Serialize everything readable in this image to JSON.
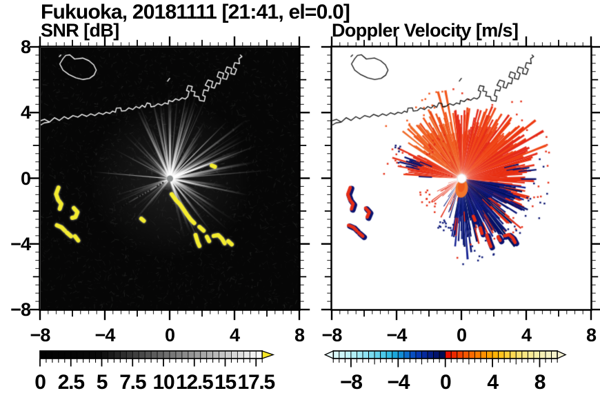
{
  "title": "Fukuoka, 20181111 [21:41, el=0.0]",
  "panels": {
    "snr": {
      "subtitle": "SNR [dB]"
    },
    "doppler": {
      "subtitle": "Doppler Velocity [m/s]"
    }
  },
  "axes": {
    "x": {
      "labels": [
        "−8",
        "−4",
        "0",
        "4",
        "8"
      ],
      "values": [
        -8,
        -4,
        0,
        4,
        8
      ]
    },
    "y": {
      "labels": [
        "8",
        "4",
        "0",
        "−4",
        "−8"
      ],
      "values": [
        8,
        4,
        0,
        -4,
        -8
      ]
    },
    "range": [
      -8,
      8
    ],
    "tick_minor": 0.5,
    "tick_medium": 2,
    "tick_major": 4
  },
  "colorbars": {
    "snr": {
      "labels": [
        "0",
        "2.5",
        "5",
        "7.5",
        "10",
        "12.5",
        "15",
        "17.5"
      ],
      "values": [
        0,
        2.5,
        5,
        7.5,
        10,
        12.5,
        15,
        17.5
      ],
      "min": 0,
      "max": 18,
      "step": 0.5,
      "ramp": "black-to-white",
      "overflow_color": "#f6e627"
    },
    "doppler": {
      "labels": [
        "−8",
        "−4",
        "0",
        "4",
        "8"
      ],
      "values": [
        -8,
        -4,
        0,
        4,
        8
      ],
      "min": -9.5,
      "max": 9.5,
      "step": 0.5,
      "underflow_color": "#eafbfb",
      "overflow_color": "#f6f3d4",
      "stops_neg": [
        [
          -9.5,
          "#defaf9"
        ],
        [
          -8,
          "#baf0f6"
        ],
        [
          -7,
          "#97e6f3"
        ],
        [
          -6,
          "#6fd7ee"
        ],
        [
          -5,
          "#3fc3e6"
        ],
        [
          -4.5,
          "#24b2de"
        ],
        [
          -4,
          "#149cd8"
        ],
        [
          -3.5,
          "#0f7ed0"
        ],
        [
          -3,
          "#0a5cc6"
        ],
        [
          -2.5,
          "#0842ba"
        ],
        [
          -2,
          "#0630a8"
        ],
        [
          -1.5,
          "#052390"
        ],
        [
          -1,
          "#03187a"
        ],
        [
          -0.5,
          "#021060"
        ],
        [
          0,
          "#01094a"
        ]
      ],
      "stops_pos": [
        [
          0,
          "#e60000"
        ],
        [
          0.5,
          "#ea1c00"
        ],
        [
          1,
          "#f03600"
        ],
        [
          1.5,
          "#f44d00"
        ],
        [
          2,
          "#f86000"
        ],
        [
          2.5,
          "#fb7300"
        ],
        [
          3,
          "#fd8600"
        ],
        [
          3.5,
          "#fe9900"
        ],
        [
          4,
          "#ffab00"
        ],
        [
          4.5,
          "#ffbb0e"
        ],
        [
          5,
          "#ffc92b"
        ],
        [
          5.5,
          "#ffd545"
        ],
        [
          6,
          "#fbdd60"
        ],
        [
          6.5,
          "#f8e378"
        ],
        [
          7,
          "#f7e88c"
        ],
        [
          7.5,
          "#f6ec9e"
        ],
        [
          8,
          "#f6efae"
        ],
        [
          8.5,
          "#f6f1bc"
        ],
        [
          9,
          "#f6f2c6"
        ],
        [
          9.5,
          "#f6f3d0"
        ]
      ]
    }
  },
  "chart_data": [
    {
      "type": "heatmap",
      "title": "SNR [dB]",
      "xlim": [
        -8,
        8
      ],
      "ylim": [
        -8,
        8
      ],
      "colorbar": {
        "min": 0,
        "max": 18,
        "ticks": [
          0,
          2.5,
          5,
          7.5,
          10,
          12.5,
          15,
          17.5
        ],
        "units": "dB"
      },
      "radar_center": [
        0,
        0
      ],
      "rays": {
        "sectors": [
          {
            "a0": -162,
            "a1": -118,
            "n": 16,
            "lmin": 40,
            "lmax": 95,
            "amin": 0.1,
            "amax": 0.42
          },
          {
            "a0": -118,
            "a1": -58,
            "n": 30,
            "lmin": 55,
            "lmax": 140,
            "amin": 0.22,
            "amax": 0.78
          },
          {
            "a0": -58,
            "a1": 12,
            "n": 30,
            "lmin": 55,
            "lmax": 145,
            "amin": 0.25,
            "amax": 0.8
          },
          {
            "a0": 12,
            "a1": 78,
            "n": 22,
            "lmin": 42,
            "lmax": 120,
            "amin": 0.15,
            "amax": 0.6
          },
          {
            "a0": 118,
            "a1": 168,
            "n": 16,
            "lmin": 45,
            "lmax": 95,
            "amin": 0.1,
            "amax": 0.34
          }
        ],
        "special": [
          {
            "a": 185,
            "l": 112,
            "alpha": 0.8,
            "w": 1.2
          },
          {
            "a": 150,
            "l": 85,
            "alpha": 0.45,
            "w": 2.0
          }
        ],
        "dark_dotted_ray": {
          "a": 150,
          "l": 82
        }
      },
      "clutter_color": "#f4ec2e",
      "clutter_chains": [
        {
          "pts": [
            [
              -6.9,
              -0.55
            ],
            [
              -7.05,
              -0.95
            ],
            [
              -6.92,
              -1.3
            ],
            [
              -6.72,
              -1.55
            ],
            [
              -6.82,
              -1.85
            ]
          ]
        },
        {
          "pts": [
            [
              -5.95,
              -1.8
            ],
            [
              -5.72,
              -2.05
            ],
            [
              -5.85,
              -2.35
            ],
            [
              -6.05,
              -2.4
            ]
          ]
        },
        {
          "pts": [
            [
              -7.0,
              -2.85
            ],
            [
              -6.7,
              -2.98
            ],
            [
              -6.5,
              -3.18
            ]
          ]
        },
        {
          "pts": [
            [
              -6.38,
              -3.3
            ],
            [
              -6.12,
              -3.52
            ]
          ]
        },
        {
          "pts": [
            [
              -5.88,
              -3.52
            ],
            [
              -5.68,
              -3.78
            ]
          ]
        },
        {
          "pts": [
            [
              0.1,
              -0.95
            ],
            [
              0.35,
              -1.3
            ],
            [
              0.62,
              -1.58
            ],
            [
              0.85,
              -1.9
            ],
            [
              1.05,
              -2.2
            ],
            [
              1.28,
              -2.5
            ],
            [
              1.5,
              -2.72
            ]
          ]
        },
        {
          "pts": [
            [
              1.82,
              -2.95
            ],
            [
              2.08,
              -3.18
            ]
          ]
        },
        {
          "pts": [
            [
              1.58,
              -3.45
            ],
            [
              1.72,
              -3.9
            ],
            [
              1.82,
              -4.12
            ]
          ]
        },
        {
          "pts": [
            [
              2.28,
              -3.55
            ],
            [
              2.42,
              -3.82
            ]
          ]
        },
        {
          "pts": [
            [
              2.7,
              -3.5
            ],
            [
              2.98,
              -3.45
            ],
            [
              3.22,
              -3.68
            ],
            [
              3.38,
              -3.95
            ]
          ]
        },
        {
          "pts": [
            [
              3.6,
              -3.82
            ],
            [
              3.82,
              -4.02
            ]
          ]
        },
        {
          "pts": [
            [
              -1.78,
              -2.45
            ],
            [
              -1.62,
              -2.58
            ]
          ]
        },
        {
          "pts": [
            [
              2.58,
              0.8
            ],
            [
              2.78,
              0.72
            ]
          ]
        }
      ]
    },
    {
      "type": "heatmap",
      "title": "Doppler Velocity [m/s]",
      "xlim": [
        -8,
        8
      ],
      "ylim": [
        -8,
        8
      ],
      "colorbar": {
        "min": -9.5,
        "max": 9.5,
        "ticks": [
          -8,
          -4,
          0,
          4,
          8
        ],
        "units": "m/s"
      },
      "radar_center": [
        0,
        0
      ],
      "fans": [
        {
          "a0": -148,
          "a1": -96,
          "step": 0.8,
          "lmin": 50,
          "lmax": 112,
          "skip": 0.07,
          "colors": [
            "#f2571c",
            "#ee6124",
            "#ea4617",
            "#f06b28"
          ]
        },
        {
          "a0": -96,
          "a1": -18,
          "step": 0.8,
          "lmin": 62,
          "lmax": 118,
          "skip": 0.03,
          "colors": [
            "#e63118",
            "#ee3b12",
            "#e52a1a",
            "#f04818"
          ]
        },
        {
          "a0": -18,
          "a1": 30,
          "step": 0.8,
          "lmin": 45,
          "lmax": 108,
          "skip": 0.1,
          "colors": [
            "#e63118",
            "#e92f10"
          ],
          "fringe": {
            "color": "#0a1470",
            "p": 0.14
          }
        },
        {
          "a0": 30,
          "a1": 74,
          "step": 1.0,
          "lmin": 22,
          "lmax": 96,
          "skip": 0.3,
          "colors": [
            "#e63118"
          ],
          "fringe": {
            "color": "#0a1470",
            "p": 0.22
          }
        },
        {
          "a0": 8,
          "a1": 100,
          "step": 0.8,
          "lmin": 48,
          "lmax": 100,
          "skip": 0.05,
          "colors": [
            "#0b1878",
            "#051068",
            "#152293",
            "#001058"
          ],
          "fringe": {
            "color": "#e52d17",
            "p": 0.1
          }
        },
        {
          "a0": 100,
          "a1": 128,
          "step": 1.2,
          "lmin": 22,
          "lmax": 66,
          "skip": 0.4,
          "colors": [
            "#0b1878",
            "#e63118"
          ]
        },
        {
          "a0": 130,
          "a1": 165,
          "step": 1.5,
          "lmin": 18,
          "lmax": 55,
          "skip": 0.55,
          "colors": [
            "#e63118"
          ]
        },
        {
          "a0": 183,
          "a1": 209,
          "step": 0.8,
          "lmin": 45,
          "lmax": 95,
          "skip": 0.1,
          "colors": [
            "#e63118",
            "#ee3f14"
          ],
          "fringe": {
            "color": "#0a1470",
            "p": 0.15
          }
        },
        {
          "a0": 212,
          "a1": 248,
          "step": 1.4,
          "lmin": 20,
          "lmax": 58,
          "skip": 0.4,
          "colors": [
            "#e63118"
          ]
        }
      ],
      "orange_patch": {
        "center": [
          0.0,
          -0.62
        ],
        "color": "#f2752c"
      },
      "dotted_ray": {
        "a": 196,
        "l": 60,
        "color": "#e62e18"
      },
      "blob_colors": {
        "fill": "#e52d17",
        "edge": "#0a1370"
      },
      "blob_chains": [
        {
          "pts": [
            [
              -6.9,
              -0.55
            ],
            [
              -7.05,
              -0.95
            ],
            [
              -6.92,
              -1.3
            ],
            [
              -6.72,
              -1.55
            ],
            [
              -6.82,
              -1.85
            ]
          ]
        },
        {
          "pts": [
            [
              -5.95,
              -1.8
            ],
            [
              -5.72,
              -2.05
            ],
            [
              -5.85,
              -2.35
            ]
          ]
        },
        {
          "pts": [
            [
              -7.0,
              -2.85
            ],
            [
              -6.7,
              -2.98
            ],
            [
              -6.5,
              -3.18
            ]
          ]
        },
        {
          "pts": [
            [
              -6.38,
              -3.3
            ],
            [
              -6.12,
              -3.52
            ]
          ]
        },
        {
          "pts": [
            [
              1.15,
              -3.0
            ],
            [
              1.25,
              -3.35
            ]
          ]
        },
        {
          "pts": [
            [
              1.55,
              -3.45
            ],
            [
              1.7,
              -3.9
            ],
            [
              1.8,
              -4.15
            ]
          ]
        },
        {
          "pts": [
            [
              2.25,
              -3.55
            ],
            [
              2.38,
              -3.78
            ]
          ]
        },
        {
          "pts": [
            [
              2.65,
              -3.5
            ],
            [
              2.92,
              -3.42
            ],
            [
              3.15,
              -3.62
            ],
            [
              3.3,
              -3.9
            ]
          ]
        },
        {
          "pts": [
            [
              0.72,
              -2.3
            ],
            [
              0.82,
              -2.55
            ]
          ]
        }
      ]
    }
  ],
  "coastline": {
    "main": [
      [
        -8.1,
        3.5
      ],
      [
        -7.75,
        3.62
      ],
      [
        -7.45,
        3.45
      ],
      [
        -7.15,
        3.72
      ],
      [
        -6.85,
        3.55
      ],
      [
        -6.55,
        3.78
      ],
      [
        -6.3,
        3.65
      ],
      [
        -6.0,
        3.85
      ],
      [
        -5.7,
        3.75
      ],
      [
        -5.45,
        3.92
      ],
      [
        -5.15,
        3.8
      ],
      [
        -4.9,
        3.95
      ],
      [
        -4.65,
        3.85
      ],
      [
        -4.4,
        4.02
      ],
      [
        -4.15,
        3.92
      ],
      [
        -3.95,
        4.05
      ],
      [
        -3.72,
        3.98
      ],
      [
        -3.55,
        4.12
      ],
      [
        -3.38,
        4.05
      ],
      [
        -3.32,
        4.3
      ],
      [
        -3.05,
        4.32
      ],
      [
        -3.0,
        4.12
      ],
      [
        -2.75,
        4.15
      ],
      [
        -2.55,
        4.32
      ],
      [
        -2.3,
        4.22
      ],
      [
        -2.1,
        4.4
      ],
      [
        -1.9,
        4.3
      ],
      [
        -1.72,
        4.47
      ],
      [
        -1.55,
        4.35
      ],
      [
        -1.42,
        4.62
      ],
      [
        -1.22,
        4.57
      ],
      [
        -1.18,
        4.38
      ],
      [
        -0.95,
        4.42
      ],
      [
        -0.75,
        4.57
      ],
      [
        -0.52,
        4.48
      ],
      [
        -0.32,
        4.62
      ],
      [
        -0.12,
        4.55
      ],
      [
        -0.08,
        4.77
      ],
      [
        0.15,
        4.7
      ],
      [
        0.35,
        4.87
      ],
      [
        0.55,
        4.78
      ],
      [
        0.75,
        4.93
      ],
      [
        0.95,
        4.86
      ],
      [
        1.1,
        5.0
      ]
    ],
    "fork": [
      [
        -8.1,
        3.22
      ],
      [
        -7.78,
        3.4
      ],
      [
        -7.5,
        3.44
      ]
    ],
    "port": [
      [
        1.1,
        5.0
      ],
      [
        1.18,
        5.32
      ],
      [
        1.02,
        5.38
      ],
      [
        1.12,
        5.68
      ],
      [
        1.38,
        5.62
      ],
      [
        1.3,
        5.35
      ],
      [
        1.55,
        5.3
      ],
      [
        1.48,
        5.05
      ],
      [
        1.78,
        5.0
      ],
      [
        1.82,
        4.78
      ],
      [
        2.12,
        4.72
      ],
      [
        2.18,
        5.02
      ],
      [
        2.02,
        5.08
      ],
      [
        2.1,
        5.42
      ],
      [
        2.35,
        5.35
      ],
      [
        2.42,
        5.6
      ],
      [
        2.18,
        5.7
      ],
      [
        2.35,
        6.02
      ],
      [
        2.65,
        5.92
      ],
      [
        2.55,
        5.58
      ],
      [
        2.75,
        5.52
      ],
      [
        2.88,
        5.85
      ],
      [
        3.08,
        5.78
      ],
      [
        3.15,
        6.12
      ],
      [
        2.92,
        6.22
      ],
      [
        3.02,
        6.52
      ],
      [
        3.32,
        6.42
      ],
      [
        3.25,
        6.12
      ],
      [
        3.5,
        6.06
      ],
      [
        3.62,
        6.42
      ],
      [
        3.42,
        6.52
      ],
      [
        3.52,
        6.82
      ],
      [
        3.82,
        6.72
      ],
      [
        3.76,
        6.42
      ],
      [
        4.0,
        6.36
      ],
      [
        4.12,
        6.68
      ],
      [
        3.92,
        6.78
      ],
      [
        4.0,
        7.08
      ],
      [
        4.3,
        7.02
      ],
      [
        4.26,
        7.32
      ],
      [
        4.45,
        7.45
      ],
      [
        4.35,
        7.55
      ]
    ],
    "island": [
      [
        -6.62,
        7.32
      ],
      [
        -6.82,
        7.0
      ],
      [
        -6.62,
        6.62
      ],
      [
        -6.25,
        6.35
      ],
      [
        -5.82,
        6.15
      ],
      [
        -5.38,
        6.05
      ],
      [
        -4.98,
        6.12
      ],
      [
        -4.7,
        6.32
      ],
      [
        -4.56,
        6.62
      ],
      [
        -4.72,
        6.95
      ],
      [
        -5.02,
        7.2
      ],
      [
        -5.4,
        7.36
      ],
      [
        -5.9,
        7.3
      ],
      [
        -6.2,
        7.56
      ],
      [
        -6.45,
        7.52
      ]
    ],
    "islets": [
      [
        [
          -0.15,
          5.95
        ],
        [
          -0.02,
          6.12
        ]
      ],
      [
        [
          -6.85,
          7.45
        ],
        [
          -6.75,
          7.55
        ]
      ]
    ]
  }
}
